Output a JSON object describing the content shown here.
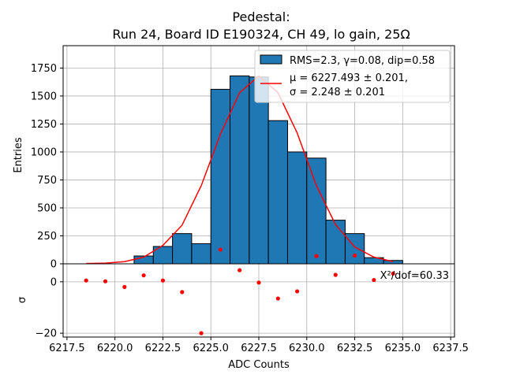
{
  "chart_data": {
    "type": "bar",
    "title": "Pedestal:",
    "subtitle": "Run 24, Board ID E190324, CH 49, lo gain, 25Ω",
    "xlabel": "ADC Counts",
    "ylabel": "Entries",
    "ylabel_residual": "σ",
    "xlim": [
      6217.3,
      6237.7
    ],
    "ylim": [
      0,
      1950
    ],
    "ylim_residual": [
      -21.5,
      7
    ],
    "grid": true,
    "legend_position": "top-right",
    "x_ticks": [
      "6217.5",
      "6220.0",
      "6222.5",
      "6225.0",
      "6227.5",
      "6230.0",
      "6232.5",
      "6235.0",
      "6237.5"
    ],
    "x_tick_values": [
      6217.5,
      6220.0,
      6222.5,
      6225.0,
      6227.5,
      6230.0,
      6232.5,
      6235.0,
      6237.5
    ],
    "y_ticks": [
      "0",
      "250",
      "500",
      "750",
      "1000",
      "1250",
      "1500",
      "1750"
    ],
    "y_tick_values": [
      0,
      250,
      500,
      750,
      1000,
      1250,
      1500,
      1750
    ],
    "y_ticks_residual": [
      "0",
      "−20"
    ],
    "y_tick_values_residual": [
      0,
      -20
    ],
    "histogram": {
      "name": "RMS=2.3, γ=0.08, dip=0.58",
      "color": "#1f77b4",
      "bin_width": 1,
      "bins": [
        {
          "x": 6221.0,
          "value": 70
        },
        {
          "x": 6222.0,
          "value": 155
        },
        {
          "x": 6223.0,
          "value": 270
        },
        {
          "x": 6224.0,
          "value": 180
        },
        {
          "x": 6225.0,
          "value": 1560
        },
        {
          "x": 6226.0,
          "value": 1680
        },
        {
          "x": 6227.0,
          "value": 1670
        },
        {
          "x": 6228.0,
          "value": 1280
        },
        {
          "x": 6229.0,
          "value": 1000
        },
        {
          "x": 6230.0,
          "value": 945
        },
        {
          "x": 6231.0,
          "value": 390
        },
        {
          "x": 6232.0,
          "value": 270
        },
        {
          "x": 6233.0,
          "value": 55
        },
        {
          "x": 6234.0,
          "value": 30
        }
      ]
    },
    "fit": {
      "name_line1": "μ = 6227.493 ± 0.201,",
      "name_line2": "σ = 2.248 ± 0.201",
      "color": "#ff0000",
      "x": [
        6218.5,
        6219.5,
        6220.5,
        6221.5,
        6222.5,
        6223.5,
        6224.5,
        6225.5,
        6226.5,
        6227.5,
        6228.5,
        6229.5,
        6230.5,
        6231.5,
        6232.5,
        6233.5,
        6234.5
      ],
      "y": [
        3,
        6,
        20,
        60,
        165,
        345,
        700,
        1160,
        1530,
        1680,
        1530,
        1170,
        700,
        350,
        150,
        60,
        20
      ]
    },
    "residuals": {
      "color": "#ff0000",
      "x": [
        6218.5,
        6219.5,
        6220.5,
        6221.5,
        6222.5,
        6223.5,
        6224.5,
        6225.5,
        6226.5,
        6227.5,
        6228.5,
        6229.5,
        6230.5,
        6231.5,
        6232.5,
        6233.5,
        6234.5
      ],
      "y": [
        0.5,
        0.2,
        -2.0,
        2.5,
        0.5,
        -4.0,
        -20.0,
        12.5,
        4.5,
        -0.3,
        -6.5,
        -3.7,
        10.0,
        2.7,
        10.2,
        0.7,
        3.2
      ]
    },
    "annotation": "X²/dof=60.33"
  }
}
